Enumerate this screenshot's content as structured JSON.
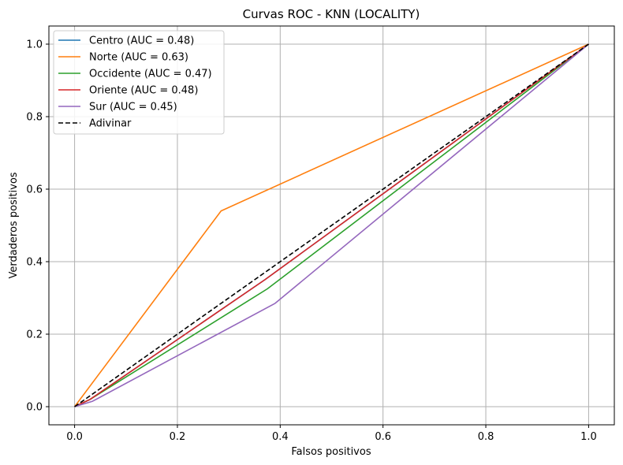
{
  "chart_data": {
    "type": "line",
    "title": "Curvas ROC - KNN (LOCALITY)",
    "xlabel": "Falsos positivos",
    "ylabel": "Verdaderos positivos",
    "xlim": [
      -0.05,
      1.05
    ],
    "ylim": [
      -0.05,
      1.05
    ],
    "xticks": [
      0.0,
      0.2,
      0.4,
      0.6,
      0.8,
      1.0
    ],
    "yticks": [
      0.0,
      0.2,
      0.4,
      0.6,
      0.8,
      1.0
    ],
    "xtick_labels": [
      "0.0",
      "0.2",
      "0.4",
      "0.6",
      "0.8",
      "1.0"
    ],
    "ytick_labels": [
      "0.0",
      "0.2",
      "0.4",
      "0.6",
      "0.8",
      "1.0"
    ],
    "grid": true,
    "legend_position": "top-left",
    "series": [
      {
        "name": "Centro (AUC = 0.48)",
        "color": "#1f77b4",
        "style": "solid",
        "x": [
          0.0,
          0.03,
          0.37,
          1.0
        ],
        "y": [
          0.0,
          0.02,
          0.35,
          1.0
        ]
      },
      {
        "name": "Norte (AUC = 0.63)",
        "color": "#ff7f0e",
        "style": "solid",
        "x": [
          0.0,
          0.285,
          1.0
        ],
        "y": [
          0.0,
          0.54,
          1.0
        ]
      },
      {
        "name": "Occidente (AUC = 0.47)",
        "color": "#2ca02c",
        "style": "solid",
        "x": [
          0.0,
          0.03,
          0.375,
          1.0
        ],
        "y": [
          0.0,
          0.02,
          0.325,
          1.0
        ]
      },
      {
        "name": "Oriente (AUC = 0.48)",
        "color": "#d62728",
        "style": "solid",
        "x": [
          0.0,
          0.03,
          0.37,
          1.0
        ],
        "y": [
          0.0,
          0.02,
          0.35,
          1.0
        ]
      },
      {
        "name": "Sur (AUC = 0.45)",
        "color": "#9467bd",
        "style": "solid",
        "x": [
          0.0,
          0.035,
          0.39,
          1.0
        ],
        "y": [
          0.0,
          0.015,
          0.285,
          1.0
        ]
      },
      {
        "name": "Adivinar",
        "color": "#000000",
        "style": "dashed",
        "x": [
          0.0,
          1.0
        ],
        "y": [
          0.0,
          1.0
        ]
      }
    ]
  }
}
